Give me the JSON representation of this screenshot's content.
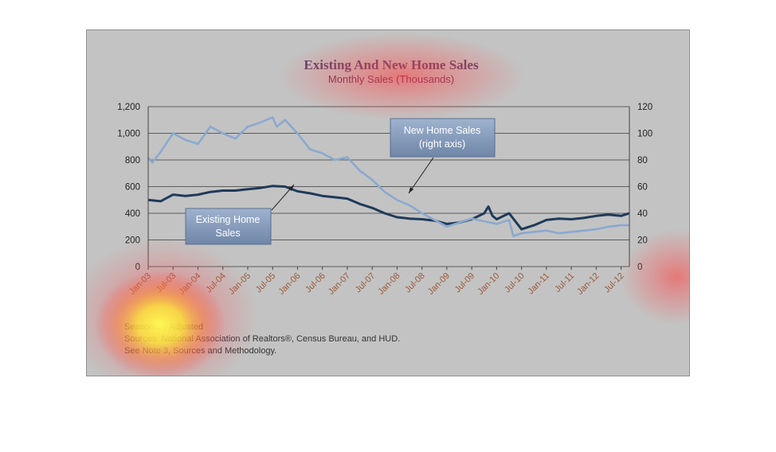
{
  "chart_data": {
    "type": "line",
    "title": "Existing And New Home Sales",
    "subtitle": "Monthly Sales (Thousands)",
    "left_axis": {
      "ylim": [
        0,
        1200
      ],
      "ticks": [
        "0",
        "200",
        "400",
        "600",
        "800",
        "1,000",
        "1,200"
      ]
    },
    "right_axis": {
      "ylim": [
        0,
        120
      ],
      "ticks": [
        "0",
        "20",
        "40",
        "60",
        "80",
        "100",
        "120"
      ]
    },
    "x_range": [
      "Jan-03",
      "Sep-12"
    ],
    "x_tick_labels": [
      "Jan-03",
      "Jul-03",
      "Jan-04",
      "Jul-04",
      "Jan-05",
      "Jul-05",
      "Jan-06",
      "Jul-06",
      "Jan-07",
      "Jul-07",
      "Jan-08",
      "Jul-08",
      "Jan-09",
      "Jul-09",
      "Jan-10",
      "Jul-10",
      "Jan-11",
      "Jul-11",
      "Jan-12",
      "Jul-12"
    ],
    "grid": true,
    "series": [
      {
        "name": "Existing Home Sales",
        "axis": "left",
        "color": "#1f3a5a",
        "points": [
          [
            "Jan-03",
            500
          ],
          [
            "Apr-03",
            490
          ],
          [
            "Jul-03",
            540
          ],
          [
            "Oct-03",
            530
          ],
          [
            "Jan-04",
            540
          ],
          [
            "Apr-04",
            560
          ],
          [
            "Jul-04",
            570
          ],
          [
            "Oct-04",
            570
          ],
          [
            "Jan-05",
            580
          ],
          [
            "Apr-05",
            590
          ],
          [
            "Jul-05",
            605
          ],
          [
            "Oct-05",
            600
          ],
          [
            "Jan-06",
            565
          ],
          [
            "Apr-06",
            550
          ],
          [
            "Jul-06",
            530
          ],
          [
            "Oct-06",
            520
          ],
          [
            "Jan-07",
            510
          ],
          [
            "Apr-07",
            470
          ],
          [
            "Jul-07",
            440
          ],
          [
            "Oct-07",
            400
          ],
          [
            "Jan-08",
            370
          ],
          [
            "Apr-08",
            360
          ],
          [
            "Jul-08",
            355
          ],
          [
            "Oct-08",
            345
          ],
          [
            "Jan-09",
            320
          ],
          [
            "Apr-09",
            330
          ],
          [
            "Jul-09",
            355
          ],
          [
            "Oct-09",
            400
          ],
          [
            "Nov-09",
            450
          ],
          [
            "Dec-09",
            380
          ],
          [
            "Jan-10",
            355
          ],
          [
            "Apr-10",
            400
          ],
          [
            "Jul-10",
            280
          ],
          [
            "Oct-10",
            310
          ],
          [
            "Jan-11",
            350
          ],
          [
            "Apr-11",
            360
          ],
          [
            "Jul-11",
            355
          ],
          [
            "Oct-11",
            365
          ],
          [
            "Jan-12",
            380
          ],
          [
            "Apr-12",
            390
          ],
          [
            "Jul-12",
            380
          ],
          [
            "Sep-12",
            400
          ]
        ]
      },
      {
        "name": "New Home Sales",
        "label": "(right axis)",
        "axis": "right",
        "color": "#8aa9cf",
        "points": [
          [
            "Jan-03",
            82
          ],
          [
            "Feb-03",
            78
          ],
          [
            "Apr-03",
            86
          ],
          [
            "Jul-03",
            100
          ],
          [
            "Oct-03",
            95
          ],
          [
            "Jan-04",
            92
          ],
          [
            "Apr-04",
            105
          ],
          [
            "Jul-04",
            100
          ],
          [
            "Oct-04",
            96
          ],
          [
            "Jan-05",
            105
          ],
          [
            "Apr-05",
            108
          ],
          [
            "Jul-05",
            112
          ],
          [
            "Aug-05",
            105
          ],
          [
            "Oct-05",
            110
          ],
          [
            "Jan-06",
            100
          ],
          [
            "Apr-06",
            88
          ],
          [
            "Jul-06",
            85
          ],
          [
            "Oct-06",
            80
          ],
          [
            "Jan-07",
            82
          ],
          [
            "Apr-07",
            72
          ],
          [
            "Jul-07",
            65
          ],
          [
            "Oct-07",
            56
          ],
          [
            "Jan-08",
            50
          ],
          [
            "Apr-08",
            46
          ],
          [
            "Jul-08",
            40
          ],
          [
            "Oct-08",
            35
          ],
          [
            "Jan-09",
            30
          ],
          [
            "Apr-09",
            33
          ],
          [
            "Jul-09",
            36
          ],
          [
            "Oct-09",
            34
          ],
          [
            "Jan-10",
            32
          ],
          [
            "Apr-10",
            35
          ],
          [
            "May-10",
            23
          ],
          [
            "Jul-10",
            25
          ],
          [
            "Oct-10",
            26
          ],
          [
            "Jan-11",
            27
          ],
          [
            "Apr-11",
            25
          ],
          [
            "Jul-11",
            26
          ],
          [
            "Oct-11",
            27
          ],
          [
            "Jan-12",
            28
          ],
          [
            "Apr-12",
            30
          ],
          [
            "Jul-12",
            31
          ],
          [
            "Sep-12",
            31
          ]
        ]
      }
    ],
    "callouts": [
      {
        "series": "New Home Sales",
        "lines": [
          "New Home Sales",
          "(right axis)"
        ]
      },
      {
        "series": "Existing Home Sales",
        "lines": [
          "Existing Home",
          "Sales"
        ]
      }
    ],
    "notes": [
      "Seasonally Adjusted",
      "Sources: National Association of Realtors®, Census Bureau, and HUD.",
      "See Note 3, Sources and Methodology."
    ]
  },
  "colors": {
    "panel_bg": "#c3c3c3",
    "gridline": "#3a3a3a",
    "callout_fill": "#8ea5c4"
  }
}
